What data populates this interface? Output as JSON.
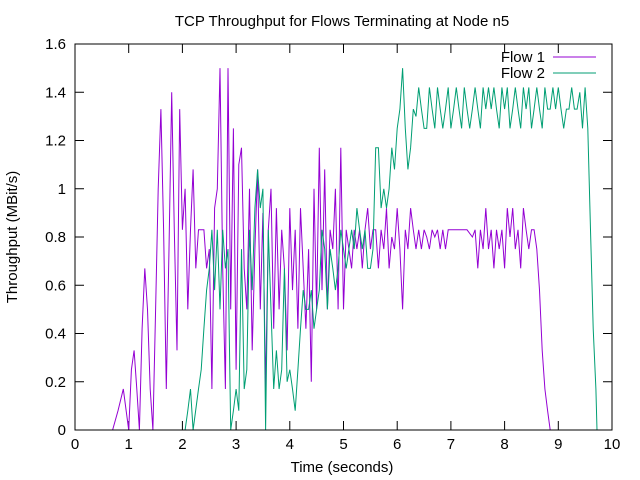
{
  "chart_data": {
    "type": "line",
    "title": "TCP Throughput for Flows Terminating at Node n5",
    "xlabel": "Time (seconds)",
    "ylabel": "Throughput (MBit/s)",
    "xlim": [
      0,
      10
    ],
    "ylim": [
      0,
      1.6
    ],
    "x_ticks": [
      0,
      1,
      2,
      3,
      4,
      5,
      6,
      7,
      8,
      9,
      10
    ],
    "y_ticks": [
      0,
      0.2,
      0.4,
      0.6,
      0.8,
      1,
      1.2,
      1.4,
      1.6
    ],
    "x_tick_labels": [
      "0",
      "1",
      "2",
      "3",
      "4",
      "5",
      "6",
      "7",
      "8",
      "9",
      "10"
    ],
    "y_tick_labels": [
      "0",
      "0.2",
      "0.4",
      "0.6",
      "0.8",
      "1",
      "1.2",
      "1.4",
      "1.6"
    ],
    "grid": false,
    "legend_position": "top-right",
    "series": [
      {
        "name": "Flow 1",
        "color": "#9400d3",
        "points": [
          [
            0.6,
            0
          ],
          [
            0.7,
            0
          ],
          [
            0.8,
            0.08
          ],
          [
            0.9,
            0.17
          ],
          [
            1.0,
            0
          ],
          [
            1.05,
            0.25
          ],
          [
            1.1,
            0.33
          ],
          [
            1.15,
            0.17
          ],
          [
            1.2,
            0
          ],
          [
            1.25,
            0.42
          ],
          [
            1.3,
            0.67
          ],
          [
            1.35,
            0.5
          ],
          [
            1.4,
            0.17
          ],
          [
            1.45,
            0
          ],
          [
            1.5,
            0.5
          ],
          [
            1.55,
            1.0
          ],
          [
            1.6,
            1.33
          ],
          [
            1.65,
            0.83
          ],
          [
            1.7,
            0.17
          ],
          [
            1.75,
            0.75
          ],
          [
            1.8,
            1.4
          ],
          [
            1.85,
            0.83
          ],
          [
            1.9,
            0.33
          ],
          [
            1.95,
            1.33
          ],
          [
            2.0,
            0.83
          ],
          [
            2.05,
            1.0
          ],
          [
            2.1,
            0.5
          ],
          [
            2.15,
            0.83
          ],
          [
            2.2,
            1.08
          ],
          [
            2.25,
            0.67
          ],
          [
            2.3,
            0.83
          ],
          [
            2.35,
            0.83
          ],
          [
            2.4,
            0.83
          ],
          [
            2.45,
            0.67
          ],
          [
            2.5,
            0.75
          ],
          [
            2.55,
            0.17
          ],
          [
            2.6,
            0.92
          ],
          [
            2.65,
            1.0
          ],
          [
            2.7,
            1.5
          ],
          [
            2.75,
            0.67
          ],
          [
            2.8,
            0.17
          ],
          [
            2.85,
            1.5
          ],
          [
            2.9,
            0.5
          ],
          [
            2.95,
            1.25
          ],
          [
            3.0,
            0.25
          ],
          [
            3.05,
            1.1
          ],
          [
            3.1,
            1.17
          ],
          [
            3.15,
            0.67
          ],
          [
            3.2,
            0.5
          ],
          [
            3.25,
            1.0
          ],
          [
            3.3,
            0.33
          ],
          [
            3.35,
            0.75
          ],
          [
            3.4,
            1.08
          ],
          [
            3.45,
            0.5
          ],
          [
            3.5,
            0.9
          ],
          [
            3.55,
            0.17
          ],
          [
            3.6,
            0.83
          ],
          [
            3.65,
            1.0
          ],
          [
            3.7,
            0.42
          ],
          [
            3.75,
            0.92
          ],
          [
            3.8,
            0.5
          ],
          [
            3.85,
            0.83
          ],
          [
            3.9,
            0.67
          ],
          [
            3.95,
            0.33
          ],
          [
            4.0,
            0.92
          ],
          [
            4.05,
            0.58
          ],
          [
            4.1,
            0.83
          ],
          [
            4.15,
            0.42
          ],
          [
            4.2,
            0.92
          ],
          [
            4.25,
            0.67
          ],
          [
            4.3,
            0.42
          ],
          [
            4.35,
            0.75
          ],
          [
            4.4,
            0.2
          ],
          [
            4.45,
            1.0
          ],
          [
            4.5,
            0.5
          ],
          [
            4.55,
            1.17
          ],
          [
            4.6,
            0.58
          ],
          [
            4.65,
            1.08
          ],
          [
            4.7,
            0.5
          ],
          [
            4.75,
            0.83
          ],
          [
            4.8,
            0.75
          ],
          [
            4.85,
            1.0
          ],
          [
            4.9,
            0.5
          ],
          [
            4.95,
            1.17
          ],
          [
            5.0,
            0.5
          ],
          [
            5.05,
            0.83
          ],
          [
            5.1,
            0.75
          ],
          [
            5.15,
            0.67
          ],
          [
            5.2,
            0.83
          ],
          [
            5.25,
            0.75
          ],
          [
            5.3,
            0.83
          ],
          [
            5.35,
            0.67
          ],
          [
            5.4,
            0.83
          ],
          [
            5.45,
            0.92
          ],
          [
            5.5,
            0.75
          ],
          [
            5.55,
            0.83
          ],
          [
            5.6,
            0.83
          ],
          [
            5.65,
            0.67
          ],
          [
            5.7,
            0.83
          ],
          [
            5.75,
            0.75
          ],
          [
            5.8,
            0.92
          ],
          [
            5.85,
            0.67
          ],
          [
            5.9,
            0.8
          ],
          [
            5.95,
            0.75
          ],
          [
            6.0,
            0.92
          ],
          [
            6.05,
            0.75
          ],
          [
            6.1,
            0.5
          ],
          [
            6.15,
            0.83
          ],
          [
            6.2,
            0.75
          ],
          [
            6.25,
            0.92
          ],
          [
            6.3,
            0.83
          ],
          [
            6.35,
            0.75
          ],
          [
            6.4,
            0.83
          ],
          [
            6.45,
            0.75
          ],
          [
            6.5,
            0.83
          ],
          [
            6.55,
            0.8
          ],
          [
            6.6,
            0.75
          ],
          [
            6.65,
            0.83
          ],
          [
            6.7,
            0.8
          ],
          [
            6.75,
            0.83
          ],
          [
            6.8,
            0.75
          ],
          [
            6.85,
            0.83
          ],
          [
            6.9,
            0.75
          ],
          [
            6.95,
            0.83
          ],
          [
            7.0,
            0.83
          ],
          [
            7.1,
            0.83
          ],
          [
            7.2,
            0.83
          ],
          [
            7.3,
            0.83
          ],
          [
            7.4,
            0.8
          ],
          [
            7.45,
            0.83
          ],
          [
            7.5,
            0.67
          ],
          [
            7.55,
            0.83
          ],
          [
            7.6,
            0.75
          ],
          [
            7.65,
            0.92
          ],
          [
            7.7,
            0.75
          ],
          [
            7.75,
            0.83
          ],
          [
            7.8,
            0.67
          ],
          [
            7.85,
            0.83
          ],
          [
            7.9,
            0.75
          ],
          [
            7.95,
            0.83
          ],
          [
            8.0,
            0.67
          ],
          [
            8.05,
            0.92
          ],
          [
            8.1,
            0.8
          ],
          [
            8.15,
            0.92
          ],
          [
            8.2,
            0.75
          ],
          [
            8.25,
            0.83
          ],
          [
            8.3,
            0.67
          ],
          [
            8.35,
            0.92
          ],
          [
            8.4,
            0.83
          ],
          [
            8.45,
            0.75
          ],
          [
            8.5,
            0.83
          ],
          [
            8.55,
            0.83
          ],
          [
            8.6,
            0.75
          ],
          [
            8.65,
            0.58
          ],
          [
            8.7,
            0.33
          ],
          [
            8.75,
            0.17
          ],
          [
            8.8,
            0.08
          ],
          [
            8.85,
            0
          ]
        ]
      },
      {
        "name": "Flow 2",
        "color": "#009e73",
        "points": [
          [
            2.05,
            0
          ],
          [
            2.1,
            0.08
          ],
          [
            2.15,
            0.17
          ],
          [
            2.2,
            0
          ],
          [
            2.3,
            0.17
          ],
          [
            2.35,
            0.25
          ],
          [
            2.4,
            0.42
          ],
          [
            2.45,
            0.58
          ],
          [
            2.5,
            0.67
          ],
          [
            2.55,
            0.83
          ],
          [
            2.6,
            0.58
          ],
          [
            2.65,
            0.83
          ],
          [
            2.7,
            0.5
          ],
          [
            2.75,
            0.83
          ],
          [
            2.8,
            0.67
          ],
          [
            2.85,
            0.75
          ],
          [
            2.9,
            0
          ],
          [
            2.95,
            0.08
          ],
          [
            3.0,
            0.17
          ],
          [
            3.05,
            0.08
          ],
          [
            3.1,
            0.75
          ],
          [
            3.15,
            0.17
          ],
          [
            3.2,
            0.25
          ],
          [
            3.25,
            0.83
          ],
          [
            3.3,
            0.58
          ],
          [
            3.35,
            0.92
          ],
          [
            3.4,
            1.08
          ],
          [
            3.45,
            0.92
          ],
          [
            3.5,
            1.0
          ],
          [
            3.55,
            0
          ],
          [
            3.6,
            0.83
          ],
          [
            3.65,
            0.5
          ],
          [
            3.7,
            0.17
          ],
          [
            3.75,
            0.33
          ],
          [
            3.8,
            0.17
          ],
          [
            3.85,
            0.25
          ],
          [
            3.9,
            0.67
          ],
          [
            3.95,
            0.2
          ],
          [
            4.0,
            0.25
          ],
          [
            4.05,
            0.17
          ],
          [
            4.1,
            0.08
          ],
          [
            4.15,
            0.25
          ],
          [
            4.2,
            0.42
          ],
          [
            4.25,
            0.58
          ],
          [
            4.3,
            0.5
          ],
          [
            4.35,
            0.5
          ],
          [
            4.4,
            0.58
          ],
          [
            4.45,
            0.42
          ],
          [
            4.5,
            0.5
          ],
          [
            4.55,
            0.58
          ],
          [
            4.6,
            0.83
          ],
          [
            4.65,
            0.75
          ],
          [
            4.7,
            0.5
          ],
          [
            4.75,
            0.75
          ],
          [
            4.8,
            0.67
          ],
          [
            4.85,
            0.58
          ],
          [
            4.9,
            0.67
          ],
          [
            4.95,
            0.83
          ],
          [
            5.0,
            0.75
          ],
          [
            5.05,
            0.67
          ],
          [
            5.1,
            0.75
          ],
          [
            5.15,
            0.83
          ],
          [
            5.2,
            0.75
          ],
          [
            5.25,
            0.92
          ],
          [
            5.3,
            0.83
          ],
          [
            5.35,
            0.75
          ],
          [
            5.4,
            0.83
          ],
          [
            5.45,
            0.67
          ],
          [
            5.5,
            0.67
          ],
          [
            5.55,
            0.75
          ],
          [
            5.6,
            1.17
          ],
          [
            5.65,
            1.17
          ],
          [
            5.7,
            0.92
          ],
          [
            5.75,
            1.0
          ],
          [
            5.8,
            0.92
          ],
          [
            5.85,
            1.0
          ],
          [
            5.9,
            1.17
          ],
          [
            5.95,
            1.08
          ],
          [
            6.0,
            1.25
          ],
          [
            6.05,
            1.33
          ],
          [
            6.1,
            1.5
          ],
          [
            6.15,
            1.25
          ],
          [
            6.2,
            1.08
          ],
          [
            6.25,
            1.17
          ],
          [
            6.3,
            1.33
          ],
          [
            6.35,
            1.3
          ],
          [
            6.4,
            1.42
          ],
          [
            6.45,
            1.33
          ],
          [
            6.5,
            1.25
          ],
          [
            6.55,
            1.25
          ],
          [
            6.6,
            1.42
          ],
          [
            6.65,
            1.33
          ],
          [
            6.7,
            1.25
          ],
          [
            6.75,
            1.42
          ],
          [
            6.8,
            1.33
          ],
          [
            6.85,
            1.25
          ],
          [
            6.9,
            1.33
          ],
          [
            6.95,
            1.42
          ],
          [
            7.0,
            1.25
          ],
          [
            7.05,
            1.33
          ],
          [
            7.1,
            1.42
          ],
          [
            7.15,
            1.33
          ],
          [
            7.2,
            1.25
          ],
          [
            7.25,
            1.42
          ],
          [
            7.3,
            1.33
          ],
          [
            7.35,
            1.25
          ],
          [
            7.4,
            1.33
          ],
          [
            7.45,
            1.42
          ],
          [
            7.5,
            1.33
          ],
          [
            7.55,
            1.25
          ],
          [
            7.6,
            1.42
          ],
          [
            7.65,
            1.33
          ],
          [
            7.7,
            1.42
          ],
          [
            7.75,
            1.33
          ],
          [
            7.8,
            1.42
          ],
          [
            7.85,
            1.33
          ],
          [
            7.9,
            1.25
          ],
          [
            7.95,
            1.42
          ],
          [
            8.0,
            1.33
          ],
          [
            8.05,
            1.42
          ],
          [
            8.1,
            1.25
          ],
          [
            8.15,
            1.33
          ],
          [
            8.2,
            1.42
          ],
          [
            8.25,
            1.33
          ],
          [
            8.3,
            1.25
          ],
          [
            8.35,
            1.42
          ],
          [
            8.4,
            1.33
          ],
          [
            8.45,
            1.42
          ],
          [
            8.5,
            1.25
          ],
          [
            8.55,
            1.33
          ],
          [
            8.6,
            1.42
          ],
          [
            8.65,
            1.33
          ],
          [
            8.7,
            1.25
          ],
          [
            8.75,
            1.42
          ],
          [
            8.8,
            1.33
          ],
          [
            8.85,
            1.33
          ],
          [
            8.9,
            1.42
          ],
          [
            8.95,
            1.33
          ],
          [
            9.0,
            1.42
          ],
          [
            9.05,
            1.33
          ],
          [
            9.1,
            1.25
          ],
          [
            9.15,
            1.33
          ],
          [
            9.2,
            1.33
          ],
          [
            9.25,
            1.42
          ],
          [
            9.3,
            1.33
          ],
          [
            9.35,
            1.33
          ],
          [
            9.4,
            1.4
          ],
          [
            9.45,
            1.25
          ],
          [
            9.5,
            1.42
          ],
          [
            9.55,
            1.25
          ],
          [
            9.6,
            0.83
          ],
          [
            9.65,
            0.42
          ],
          [
            9.7,
            0.17
          ],
          [
            9.72,
            0
          ]
        ]
      }
    ]
  }
}
